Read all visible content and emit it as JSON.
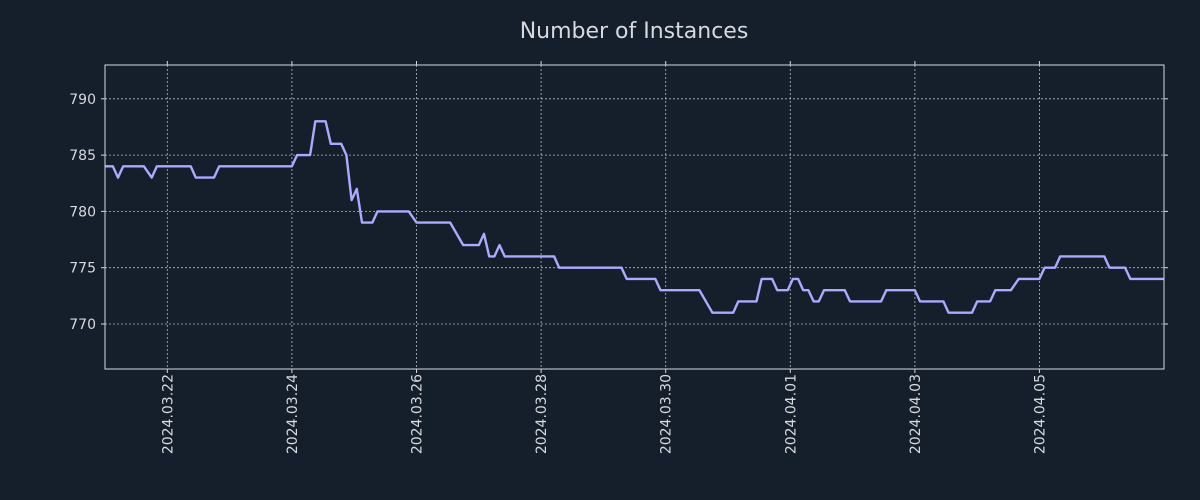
{
  "chart_data": {
    "type": "line",
    "title": "Number of Instances",
    "xlabel": "",
    "ylabel": "",
    "ylim": [
      766,
      793
    ],
    "xlim": [
      "2024-03-21T00:00",
      "2024-04-06T23:59"
    ],
    "y_ticks": [
      770,
      775,
      780,
      785,
      790
    ],
    "x_ticks": [
      "2024.03.22",
      "2024.03.24",
      "2024.03.26",
      "2024.03.28",
      "2024.03.30",
      "2024.04.01",
      "2024.04.03",
      "2024.04.05"
    ],
    "x_tick_dates": [
      "2024-03-22T00:00",
      "2024-03-24T00:00",
      "2024-03-26T00:00",
      "2024-03-28T00:00",
      "2024-03-30T00:00",
      "2024-04-01T00:00",
      "2024-04-03T00:00",
      "2024-04-05T00:00"
    ],
    "grid": true,
    "series": [
      {
        "name": "Number of Instances",
        "color": "#aaaaff",
        "points": [
          [
            "2024-03-21T00:00",
            784
          ],
          [
            "2024-03-21T03:00",
            784
          ],
          [
            "2024-03-21T05:00",
            783
          ],
          [
            "2024-03-21T07:00",
            784
          ],
          [
            "2024-03-21T15:00",
            784
          ],
          [
            "2024-03-21T18:00",
            783
          ],
          [
            "2024-03-21T20:00",
            784
          ],
          [
            "2024-03-22T09:00",
            784
          ],
          [
            "2024-03-22T11:00",
            783
          ],
          [
            "2024-03-22T18:00",
            783
          ],
          [
            "2024-03-22T20:00",
            784
          ],
          [
            "2024-03-24T00:00",
            784
          ],
          [
            "2024-03-24T02:00",
            785
          ],
          [
            "2024-03-24T07:00",
            785
          ],
          [
            "2024-03-24T09:00",
            788
          ],
          [
            "2024-03-24T13:00",
            788
          ],
          [
            "2024-03-24T15:00",
            786
          ],
          [
            "2024-03-24T19:00",
            786
          ],
          [
            "2024-03-24T21:00",
            785
          ],
          [
            "2024-03-24T23:00",
            781
          ],
          [
            "2024-03-25T01:00",
            782
          ],
          [
            "2024-03-25T03:00",
            779
          ],
          [
            "2024-03-25T07:00",
            779
          ],
          [
            "2024-03-25T09:00",
            780
          ],
          [
            "2024-03-25T21:00",
            780
          ],
          [
            "2024-03-26T00:00",
            779
          ],
          [
            "2024-03-26T13:00",
            779
          ],
          [
            "2024-03-26T18:00",
            777
          ],
          [
            "2024-03-27T00:00",
            777
          ],
          [
            "2024-03-27T02:00",
            778
          ],
          [
            "2024-03-27T04:00",
            776
          ],
          [
            "2024-03-27T06:00",
            776
          ],
          [
            "2024-03-27T08:00",
            777
          ],
          [
            "2024-03-27T10:00",
            776
          ],
          [
            "2024-03-28T05:00",
            776
          ],
          [
            "2024-03-28T07:00",
            775
          ],
          [
            "2024-03-29T07:00",
            775
          ],
          [
            "2024-03-29T09:00",
            774
          ],
          [
            "2024-03-29T20:00",
            774
          ],
          [
            "2024-03-29T22:00",
            773
          ],
          [
            "2024-03-30T13:00",
            773
          ],
          [
            "2024-03-30T18:00",
            771
          ],
          [
            "2024-03-31T02:00",
            771
          ],
          [
            "2024-03-31T04:00",
            772
          ],
          [
            "2024-03-31T11:00",
            772
          ],
          [
            "2024-03-31T13:00",
            774
          ],
          [
            "2024-03-31T17:00",
            774
          ],
          [
            "2024-03-31T19:00",
            773
          ],
          [
            "2024-03-31T23:00",
            773
          ],
          [
            "2024-04-01T01:00",
            774
          ],
          [
            "2024-04-01T03:00",
            774
          ],
          [
            "2024-04-01T05:00",
            773
          ],
          [
            "2024-04-01T07:00",
            773
          ],
          [
            "2024-04-01T09:00",
            772
          ],
          [
            "2024-04-01T11:00",
            772
          ],
          [
            "2024-04-01T13:00",
            773
          ],
          [
            "2024-04-01T21:00",
            773
          ],
          [
            "2024-04-01T23:00",
            772
          ],
          [
            "2024-04-02T11:00",
            772
          ],
          [
            "2024-04-02T13:00",
            773
          ],
          [
            "2024-04-03T00:00",
            773
          ],
          [
            "2024-04-03T02:00",
            772
          ],
          [
            "2024-04-03T11:00",
            772
          ],
          [
            "2024-04-03T13:00",
            771
          ],
          [
            "2024-04-03T22:00",
            771
          ],
          [
            "2024-04-04T00:00",
            772
          ],
          [
            "2024-04-04T05:00",
            772
          ],
          [
            "2024-04-04T07:00",
            773
          ],
          [
            "2024-04-04T13:00",
            773
          ],
          [
            "2024-04-04T16:00",
            774
          ],
          [
            "2024-04-05T00:00",
            774
          ],
          [
            "2024-04-05T02:00",
            775
          ],
          [
            "2024-04-05T06:00",
            775
          ],
          [
            "2024-04-05T08:00",
            776
          ],
          [
            "2024-04-06T01:00",
            776
          ],
          [
            "2024-04-06T03:00",
            775
          ],
          [
            "2024-04-06T09:00",
            775
          ],
          [
            "2024-04-06T11:00",
            774
          ],
          [
            "2024-04-06T23:59",
            774
          ]
        ]
      }
    ]
  }
}
